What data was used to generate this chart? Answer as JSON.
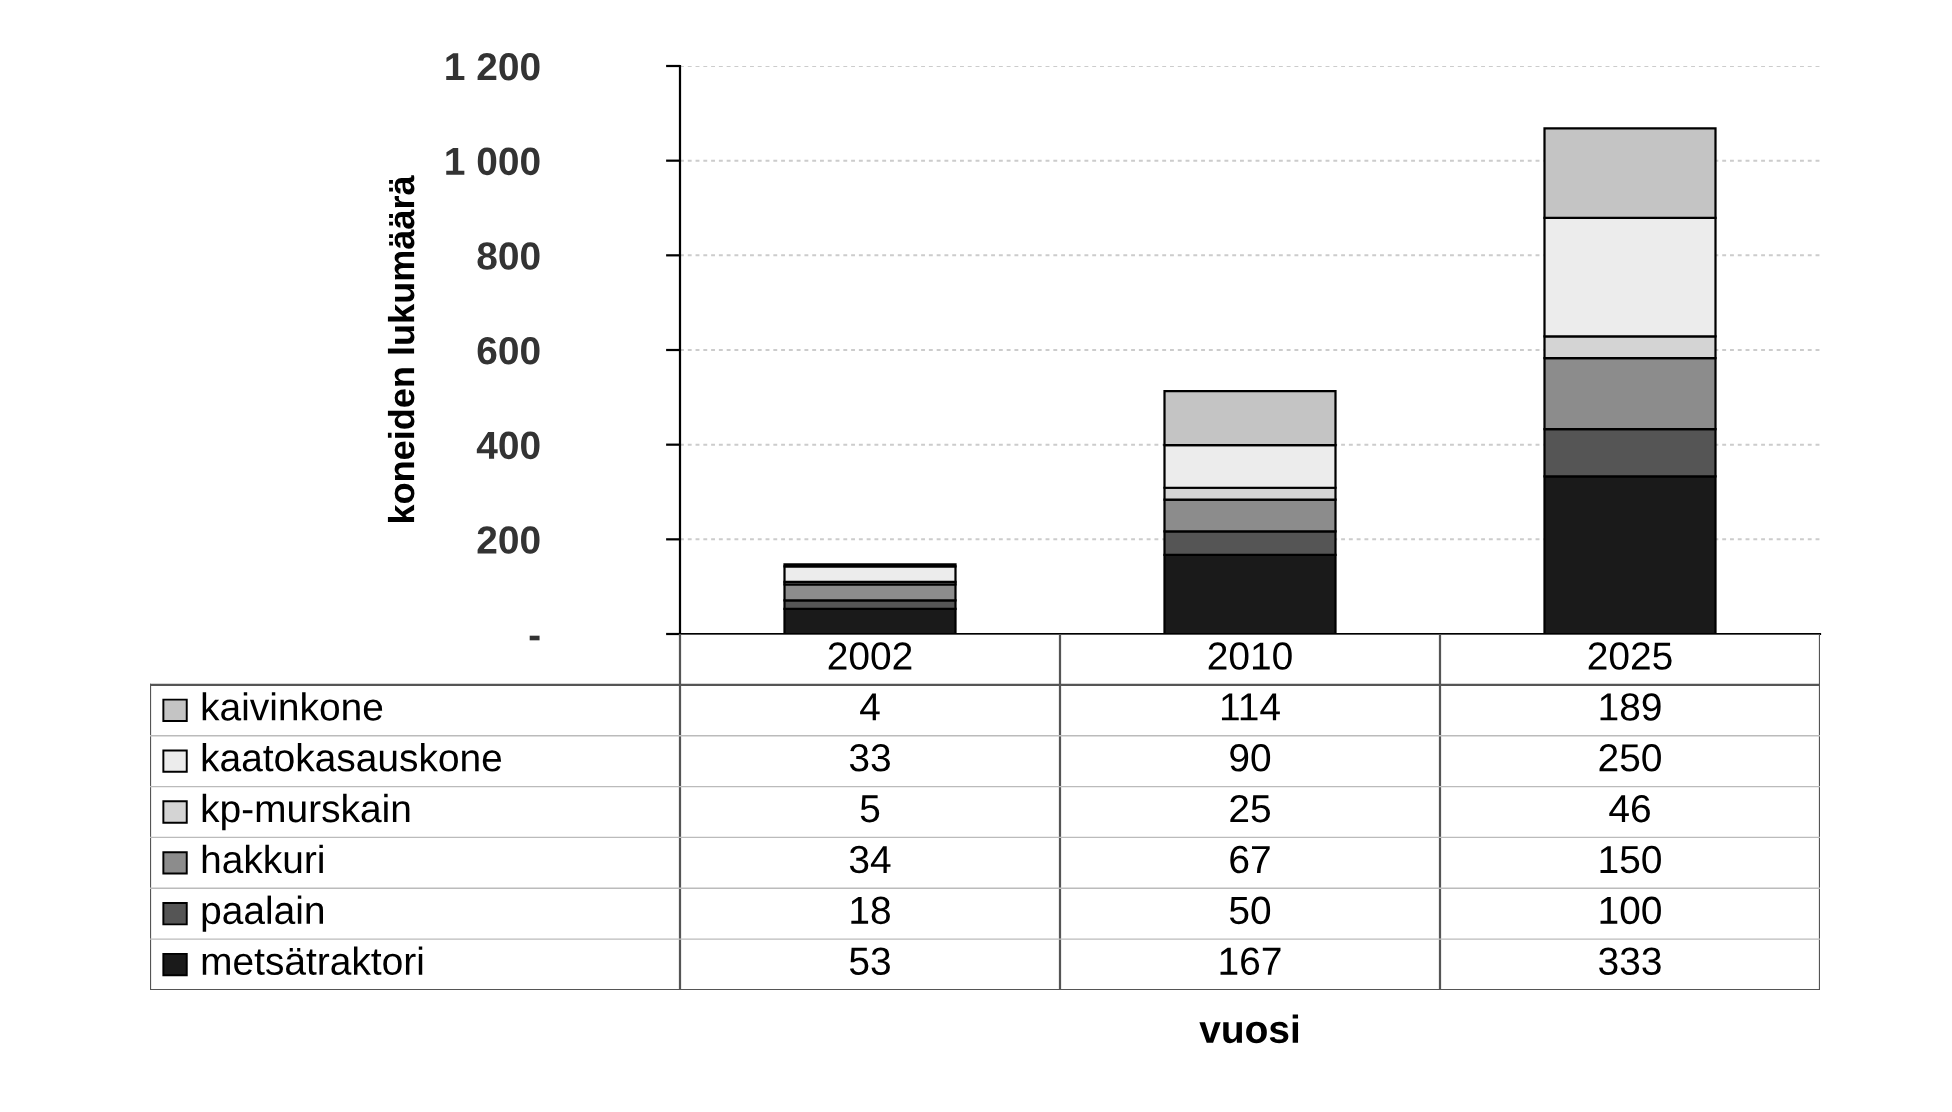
{
  "chart_data": {
    "type": "bar",
    "stacked": true,
    "ylabel": "koneiden lukumäärä",
    "annotations": [
      "vuosi"
    ],
    "categories": [
      "2002",
      "2010",
      "2025"
    ],
    "series": [
      {
        "name": "metsätraktori",
        "color": "#1a1a1a",
        "values": [
          53,
          167,
          333
        ]
      },
      {
        "name": "paalain",
        "color": "#555555",
        "values": [
          18,
          50,
          100
        ]
      },
      {
        "name": "hakkuri",
        "color": "#8c8c8c",
        "values": [
          34,
          67,
          150
        ]
      },
      {
        "name": "kp-murskain",
        "color": "#d4d4d4",
        "values": [
          5,
          25,
          46
        ]
      },
      {
        "name": "kaatokasauskone",
        "color": "#ececec",
        "values": [
          33,
          90,
          250
        ]
      },
      {
        "name": "kaivinkone",
        "color": "#c4c4c4",
        "values": [
          4,
          114,
          189
        ]
      }
    ],
    "ylim": [
      0,
      1200
    ],
    "yticks": [
      {
        "value": 0,
        "label": "-"
      },
      200,
      400,
      600,
      800,
      {
        "value": 1000,
        "label": "1 000"
      },
      {
        "value": 1200,
        "label": "1 200"
      }
    ],
    "grid": "y",
    "data_labels": true,
    "legend": "bottom left"
  }
}
